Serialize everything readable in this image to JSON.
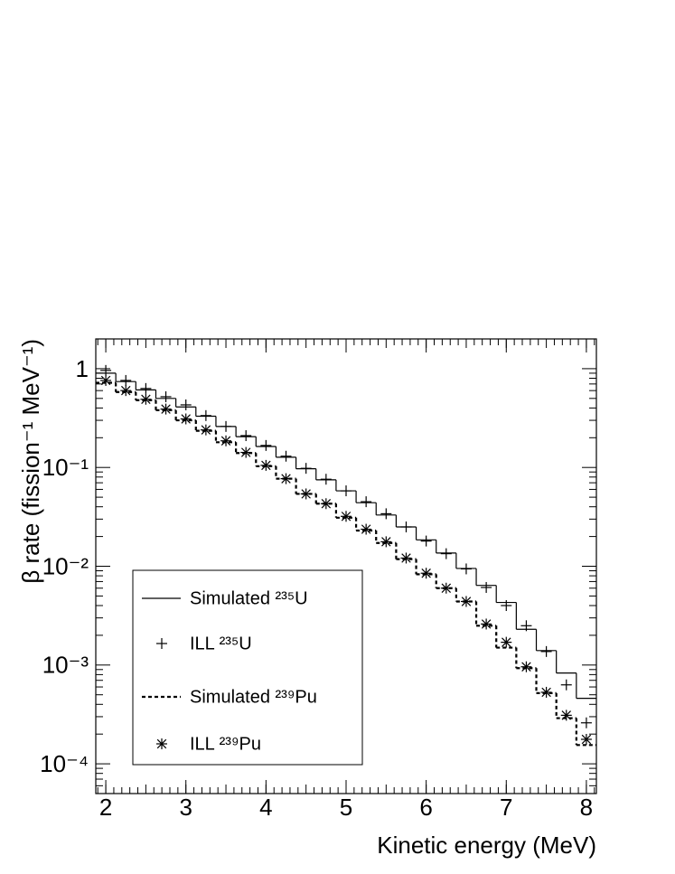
{
  "chart_data": {
    "type": "histogram",
    "xlabel": "Kinetic energy (MeV)",
    "ylabel": "β rate (fission⁻¹ MeV⁻¹)",
    "xlim": [
      1.875,
      8.125
    ],
    "ylim": [
      5e-05,
      2
    ],
    "log_y": true,
    "legend": "lower left",
    "xticks": [
      2,
      3,
      4,
      5,
      6,
      7,
      8
    ],
    "yticks": [
      {
        "value": 0.0001,
        "label": "10⁻⁴"
      },
      {
        "value": 0.001,
        "label": "10⁻³"
      },
      {
        "value": 0.01,
        "label": "10⁻²"
      },
      {
        "value": 0.1,
        "label": "10⁻¹"
      },
      1
    ],
    "bins": [
      1.875,
      2.125,
      2.375,
      2.625,
      2.875,
      3.125,
      3.375,
      3.625,
      3.875,
      4.125,
      4.375,
      4.625,
      4.875,
      5.125,
      5.375,
      5.625,
      5.875,
      6.125,
      6.375,
      6.625,
      6.875,
      7.125,
      7.375,
      7.625,
      7.875,
      8.125
    ],
    "x": [
      2,
      2.25,
      2.5,
      2.75,
      3,
      3.25,
      3.5,
      3.75,
      4,
      4.25,
      4.5,
      4.75,
      5,
      5.25,
      5.5,
      5.75,
      6,
      6.25,
      6.5,
      6.75,
      7,
      7.25,
      7.5,
      7.75,
      8
    ],
    "series": [
      {
        "name": "Simulated ²³⁵U",
        "type": "histogram",
        "style": "solid",
        "color": "#000000",
        "values": [
          0.9,
          0.74,
          0.61,
          0.5,
          0.41,
          0.33,
          0.26,
          0.205,
          0.163,
          0.127,
          0.097,
          0.075,
          0.058,
          0.044,
          0.033,
          0.025,
          0.0185,
          0.0136,
          0.0095,
          0.0064,
          0.0043,
          0.0023,
          0.0014,
          0.00083,
          0.00046
        ]
      },
      {
        "name": "ILL ²³⁵U",
        "type": "scatter",
        "marker": "plus",
        "color": "#000000",
        "values": [
          0.96,
          0.76,
          0.63,
          0.52,
          0.43,
          0.335,
          0.26,
          0.21,
          0.167,
          0.13,
          0.098,
          0.076,
          0.058,
          0.045,
          0.034,
          0.025,
          0.018,
          0.0134,
          0.0094,
          0.0061,
          0.004,
          0.0025,
          0.00137,
          0.00063,
          0.00026
        ]
      },
      {
        "name": "Simulated ²³⁹Pu",
        "type": "histogram",
        "style": "dashed",
        "color": "#000000",
        "values": [
          0.72,
          0.58,
          0.48,
          0.38,
          0.3,
          0.235,
          0.18,
          0.14,
          0.103,
          0.077,
          0.054,
          0.043,
          0.031,
          0.023,
          0.0172,
          0.0118,
          0.0083,
          0.006,
          0.0044,
          0.0025,
          0.0015,
          0.00093,
          0.00052,
          0.00029,
          0.000155
        ]
      },
      {
        "name": "ILL ²³⁹Pu",
        "type": "scatter",
        "marker": "asterisk",
        "color": "#000000",
        "values": [
          0.76,
          0.6,
          0.49,
          0.39,
          0.31,
          0.24,
          0.186,
          0.142,
          0.105,
          0.077,
          0.054,
          0.043,
          0.032,
          0.0237,
          0.0177,
          0.0121,
          0.0085,
          0.006,
          0.0044,
          0.0026,
          0.0017,
          0.00096,
          0.00053,
          0.00031,
          0.000177
        ]
      }
    ]
  }
}
